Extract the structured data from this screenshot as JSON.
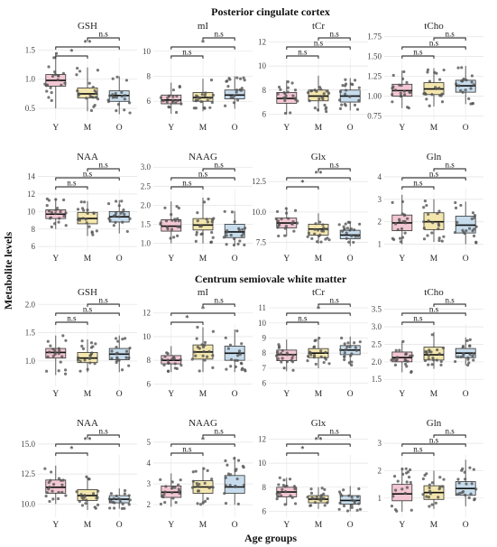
{
  "figure": {
    "ylabel": "Metabolite levels",
    "xlabel": "Age groups",
    "sections": [
      "Posterior cingulate cortex",
      "Centrum semiovale white matter"
    ]
  },
  "colors": {
    "Y": "#f2c6d3",
    "M": "#f3e6ad",
    "O": "#c6dcec",
    "grid": "#e6e6e6",
    "points": "#555555"
  },
  "chart_data": [
    {
      "type": "box",
      "section": "Posterior cingulate cortex",
      "title": "GSH",
      "categories": [
        "Y",
        "M",
        "O"
      ],
      "ylim": [
        0.3,
        1.8
      ],
      "yticks": [
        0.5,
        1.0,
        1.5
      ],
      "ytick_labels": [
        "0.5",
        "1.0",
        "1.5"
      ],
      "boxes": [
        {
          "group": "Y",
          "min": 0.5,
          "q1": 0.88,
          "median": 0.98,
          "q3": 1.08,
          "max": 1.45
        },
        {
          "group": "M",
          "min": 0.45,
          "q1": 0.68,
          "median": 0.75,
          "q3": 0.85,
          "max": 1.2
        },
        {
          "group": "O",
          "min": 0.4,
          "q1": 0.62,
          "median": 0.72,
          "q3": 0.8,
          "max": 1.05
        }
      ],
      "significance": [
        {
          "from": "Y",
          "to": "M",
          "label": "*"
        },
        {
          "from": "Y",
          "to": "O",
          "label": "**"
        },
        {
          "from": "M",
          "to": "O",
          "label": "n.s"
        }
      ]
    },
    {
      "type": "box",
      "section": "Posterior cingulate cortex",
      "title": "mI",
      "categories": [
        "Y",
        "M",
        "O"
      ],
      "ylim": [
        4.5,
        11.5
      ],
      "yticks": [
        6,
        8,
        10
      ],
      "ytick_labels": [
        "6",
        "8",
        "10"
      ],
      "boxes": [
        {
          "group": "Y",
          "min": 5.0,
          "q1": 5.8,
          "median": 6.1,
          "q3": 6.5,
          "max": 7.5
        },
        {
          "group": "M",
          "min": 5.2,
          "q1": 6.0,
          "median": 6.3,
          "q3": 6.7,
          "max": 7.8
        },
        {
          "group": "O",
          "min": 5.4,
          "q1": 6.2,
          "median": 6.5,
          "q3": 6.9,
          "max": 8.0
        }
      ],
      "significance": [
        {
          "from": "Y",
          "to": "M",
          "label": "n.s"
        },
        {
          "from": "Y",
          "to": "O",
          "label": "*"
        },
        {
          "from": "M",
          "to": "O",
          "label": "n.s"
        }
      ]
    },
    {
      "type": "box",
      "section": "Posterior cingulate cortex",
      "title": "tCr",
      "categories": [
        "Y",
        "M",
        "O"
      ],
      "ylim": [
        5.5,
        12.8
      ],
      "yticks": [
        6,
        8,
        10,
        12
      ],
      "ytick_labels": [
        "6",
        "8",
        "10",
        "12"
      ],
      "boxes": [
        {
          "group": "Y",
          "min": 6.0,
          "q1": 6.9,
          "median": 7.3,
          "q3": 7.8,
          "max": 8.8
        },
        {
          "group": "M",
          "min": 6.2,
          "q1": 7.1,
          "median": 7.5,
          "q3": 8.0,
          "max": 9.2
        },
        {
          "group": "O",
          "min": 6.3,
          "q1": 7.0,
          "median": 7.5,
          "q3": 8.0,
          "max": 9.0
        }
      ],
      "significance": [
        {
          "from": "Y",
          "to": "M",
          "label": "n.s"
        },
        {
          "from": "Y",
          "to": "O",
          "label": "n.s"
        },
        {
          "from": "M",
          "to": "O",
          "label": "n.s"
        }
      ]
    },
    {
      "type": "box",
      "section": "Posterior cingulate cortex",
      "title": "tCho",
      "categories": [
        "Y",
        "M",
        "O"
      ],
      "ylim": [
        0.7,
        1.8
      ],
      "yticks": [
        0.75,
        1.0,
        1.25,
        1.5,
        1.75
      ],
      "ytick_labels": [
        "0.75",
        "1.00",
        "1.25",
        "1.50",
        "1.75"
      ],
      "boxes": [
        {
          "group": "Y",
          "min": 0.85,
          "q1": 1.0,
          "median": 1.07,
          "q3": 1.15,
          "max": 1.32
        },
        {
          "group": "M",
          "min": 0.87,
          "q1": 1.02,
          "median": 1.09,
          "q3": 1.17,
          "max": 1.35
        },
        {
          "group": "O",
          "min": 0.9,
          "q1": 1.05,
          "median": 1.13,
          "q3": 1.2,
          "max": 1.38
        }
      ],
      "significance": [
        {
          "from": "Y",
          "to": "M",
          "label": "n.s"
        },
        {
          "from": "Y",
          "to": "O",
          "label": "n.s"
        },
        {
          "from": "M",
          "to": "O",
          "label": "n.s"
        }
      ]
    },
    {
      "type": "box",
      "section": "Posterior cingulate cortex",
      "title": "NAA",
      "categories": [
        "Y",
        "M",
        "O"
      ],
      "ylim": [
        5.5,
        15.5
      ],
      "yticks": [
        6,
        8,
        10,
        12,
        14
      ],
      "ytick_labels": [
        "6",
        "8",
        "10",
        "12",
        "14"
      ],
      "boxes": [
        {
          "group": "Y",
          "min": 8.0,
          "q1": 9.2,
          "median": 9.7,
          "q3": 10.2,
          "max": 11.5
        },
        {
          "group": "M",
          "min": 7.2,
          "q1": 8.6,
          "median": 9.2,
          "q3": 9.9,
          "max": 11.2
        },
        {
          "group": "O",
          "min": 7.5,
          "q1": 8.8,
          "median": 9.4,
          "q3": 10.0,
          "max": 11.3
        }
      ],
      "significance": [
        {
          "from": "Y",
          "to": "M",
          "label": "n.s"
        },
        {
          "from": "Y",
          "to": "O",
          "label": "n.s"
        },
        {
          "from": "M",
          "to": "O",
          "label": "n.s"
        }
      ]
    },
    {
      "type": "box",
      "section": "Posterior cingulate cortex",
      "title": "NAAG",
      "categories": [
        "Y",
        "M",
        "O"
      ],
      "ylim": [
        0.8,
        3.1
      ],
      "yticks": [
        1.0,
        1.5,
        2.0,
        2.5,
        3.0
      ],
      "ytick_labels": [
        "1.0",
        "1.5",
        "2.0",
        "2.5",
        "3.0"
      ],
      "boxes": [
        {
          "group": "Y",
          "min": 1.0,
          "q1": 1.32,
          "median": 1.45,
          "q3": 1.62,
          "max": 2.1
        },
        {
          "group": "M",
          "min": 1.0,
          "q1": 1.35,
          "median": 1.48,
          "q3": 1.65,
          "max": 2.2
        },
        {
          "group": "O",
          "min": 0.95,
          "q1": 1.15,
          "median": 1.3,
          "q3": 1.5,
          "max": 1.85
        }
      ],
      "significance": [
        {
          "from": "Y",
          "to": "M",
          "label": "n.s"
        },
        {
          "from": "Y",
          "to": "O",
          "label": "n.s"
        },
        {
          "from": "M",
          "to": "O",
          "label": "n.s"
        }
      ]
    },
    {
      "type": "box",
      "section": "Posterior cingulate cortex",
      "title": "Glx",
      "categories": [
        "Y",
        "M",
        "O"
      ],
      "ylim": [
        6.8,
        14.0
      ],
      "yticks": [
        7.5,
        10.0,
        12.5
      ],
      "ytick_labels": [
        "7.5",
        "10.0",
        "12.5"
      ],
      "boxes": [
        {
          "group": "Y",
          "min": 8.0,
          "q1": 8.7,
          "median": 9.1,
          "q3": 9.5,
          "max": 10.3
        },
        {
          "group": "M",
          "min": 7.4,
          "q1": 8.1,
          "median": 8.6,
          "q3": 9.0,
          "max": 9.9
        },
        {
          "group": "O",
          "min": 7.2,
          "q1": 7.8,
          "median": 8.1,
          "q3": 8.5,
          "max": 9.2
        }
      ],
      "significance": [
        {
          "from": "Y",
          "to": "M",
          "label": "*"
        },
        {
          "from": "Y",
          "to": "O",
          "label": "**"
        },
        {
          "from": "M",
          "to": "O",
          "label": "n.s"
        }
      ]
    },
    {
      "type": "box",
      "section": "Posterior cingulate cortex",
      "title": "Gln",
      "categories": [
        "Y",
        "M",
        "O"
      ],
      "ylim": [
        0.7,
        4.6
      ],
      "yticks": [
        1,
        2,
        3,
        4
      ],
      "ytick_labels": [
        "1",
        "2",
        "3",
        "4"
      ],
      "boxes": [
        {
          "group": "Y",
          "min": 1.0,
          "q1": 1.6,
          "median": 1.95,
          "q3": 2.3,
          "max": 3.2
        },
        {
          "group": "M",
          "min": 1.1,
          "q1": 1.65,
          "median": 2.0,
          "q3": 2.4,
          "max": 3.0
        },
        {
          "group": "O",
          "min": 1.0,
          "q1": 1.5,
          "median": 1.85,
          "q3": 2.25,
          "max": 2.9
        }
      ],
      "significance": [
        {
          "from": "Y",
          "to": "M",
          "label": "n.s"
        },
        {
          "from": "Y",
          "to": "O",
          "label": "n.s"
        },
        {
          "from": "M",
          "to": "O",
          "label": "n.s"
        }
      ]
    },
    {
      "type": "box",
      "section": "Centrum semiovale white matter",
      "title": "GSH",
      "categories": [
        "Y",
        "M",
        "O"
      ],
      "ylim": [
        0.55,
        2.1
      ],
      "yticks": [
        1.0,
        1.5,
        2.0
      ],
      "ytick_labels": [
        "1.0",
        "1.5",
        "2.0"
      ],
      "boxes": [
        {
          "group": "Y",
          "min": 0.75,
          "q1": 1.05,
          "median": 1.15,
          "q3": 1.22,
          "max": 1.45
        },
        {
          "group": "M",
          "min": 0.8,
          "q1": 0.97,
          "median": 1.05,
          "q3": 1.15,
          "max": 1.38
        },
        {
          "group": "O",
          "min": 0.8,
          "q1": 1.02,
          "median": 1.12,
          "q3": 1.22,
          "max": 1.45
        }
      ],
      "significance": [
        {
          "from": "Y",
          "to": "M",
          "label": "n.s"
        },
        {
          "from": "Y",
          "to": "O",
          "label": "n.s"
        },
        {
          "from": "M",
          "to": "O",
          "label": "n.s"
        }
      ]
    },
    {
      "type": "box",
      "section": "Centrum semiovale white matter",
      "title": "mI",
      "categories": [
        "Y",
        "M",
        "O"
      ],
      "ylim": [
        5.8,
        13.2
      ],
      "yticks": [
        6,
        8,
        10,
        12
      ],
      "ytick_labels": [
        "6",
        "8",
        "10",
        "12"
      ],
      "boxes": [
        {
          "group": "Y",
          "min": 7.0,
          "q1": 7.7,
          "median": 8.0,
          "q3": 8.4,
          "max": 9.2
        },
        {
          "group": "M",
          "min": 7.0,
          "q1": 8.1,
          "median": 8.7,
          "q3": 9.3,
          "max": 10.8
        },
        {
          "group": "O",
          "min": 7.0,
          "q1": 8.0,
          "median": 8.6,
          "q3": 9.2,
          "max": 10.6
        }
      ],
      "significance": [
        {
          "from": "Y",
          "to": "M",
          "label": "*"
        },
        {
          "from": "Y",
          "to": "O",
          "label": "*"
        },
        {
          "from": "M",
          "to": "O",
          "label": "n.s"
        }
      ]
    },
    {
      "type": "box",
      "section": "Centrum semiovale white matter",
      "title": "tCr",
      "categories": [
        "Y",
        "M",
        "O"
      ],
      "ylim": [
        5.8,
        11.6
      ],
      "yticks": [
        6,
        7,
        8,
        9,
        10,
        11
      ],
      "ytick_labels": [
        "6",
        "7",
        "8",
        "9",
        "10",
        "11"
      ],
      "boxes": [
        {
          "group": "Y",
          "min": 6.8,
          "q1": 7.5,
          "median": 7.9,
          "q3": 8.2,
          "max": 8.9
        },
        {
          "group": "M",
          "min": 7.0,
          "q1": 7.7,
          "median": 8.0,
          "q3": 8.3,
          "max": 9.0
        },
        {
          "group": "O",
          "min": 7.2,
          "q1": 7.9,
          "median": 8.2,
          "q3": 8.5,
          "max": 9.1
        }
      ],
      "significance": [
        {
          "from": "Y",
          "to": "M",
          "label": "n.s"
        },
        {
          "from": "Y",
          "to": "O",
          "label": "*"
        },
        {
          "from": "M",
          "to": "O",
          "label": "n.s"
        }
      ]
    },
    {
      "type": "box",
      "section": "Centrum semiovale white matter",
      "title": "tCho",
      "categories": [
        "Y",
        "M",
        "O"
      ],
      "ylim": [
        1.3,
        3.8
      ],
      "yticks": [
        1.5,
        2.0,
        2.5,
        3.0,
        3.5
      ],
      "ytick_labels": [
        "1.5",
        "2.0",
        "2.5",
        "3.0",
        "3.5"
      ],
      "boxes": [
        {
          "group": "Y",
          "min": 1.7,
          "q1": 2.0,
          "median": 2.12,
          "q3": 2.28,
          "max": 2.6
        },
        {
          "group": "M",
          "min": 1.8,
          "q1": 2.05,
          "median": 2.2,
          "q3": 2.42,
          "max": 2.85
        },
        {
          "group": "O",
          "min": 1.9,
          "q1": 2.12,
          "median": 2.25,
          "q3": 2.38,
          "max": 2.7
        }
      ],
      "significance": [
        {
          "from": "Y",
          "to": "M",
          "label": "n.s"
        },
        {
          "from": "Y",
          "to": "O",
          "label": "n.s"
        },
        {
          "from": "M",
          "to": "O",
          "label": "n.s"
        }
      ]
    },
    {
      "type": "box",
      "section": "Centrum semiovale white matter",
      "title": "NAA",
      "categories": [
        "Y",
        "M",
        "O"
      ],
      "ylim": [
        8.9,
        16.2
      ],
      "yticks": [
        10.0,
        12.5,
        15.0
      ],
      "ytick_labels": [
        "10.0",
        "12.5",
        "15.0"
      ],
      "boxes": [
        {
          "group": "Y",
          "min": 10.0,
          "q1": 10.9,
          "median": 11.4,
          "q3": 12.0,
          "max": 13.2
        },
        {
          "group": "M",
          "min": 9.5,
          "q1": 10.3,
          "median": 10.7,
          "q3": 11.2,
          "max": 12.3
        },
        {
          "group": "O",
          "min": 9.6,
          "q1": 10.1,
          "median": 10.4,
          "q3": 10.7,
          "max": 11.3
        }
      ],
      "significance": [
        {
          "from": "Y",
          "to": "M",
          "label": "*"
        },
        {
          "from": "Y",
          "to": "O",
          "label": "**"
        },
        {
          "from": "M",
          "to": "O",
          "label": "n.s"
        }
      ]
    },
    {
      "type": "box",
      "section": "Centrum semiovale white matter",
      "title": "NAAG",
      "categories": [
        "Y",
        "M",
        "O"
      ],
      "ylim": [
        1.4,
        5.6
      ],
      "yticks": [
        2,
        3,
        4,
        5
      ],
      "ytick_labels": [
        "2",
        "3",
        "4",
        "5"
      ],
      "boxes": [
        {
          "group": "Y",
          "min": 1.9,
          "q1": 2.35,
          "median": 2.6,
          "q3": 2.9,
          "max": 3.5
        },
        {
          "group": "M",
          "min": 2.0,
          "q1": 2.55,
          "median": 2.85,
          "q3": 3.15,
          "max": 3.8
        },
        {
          "group": "O",
          "min": 2.0,
          "q1": 2.55,
          "median": 2.85,
          "q3": 3.4,
          "max": 4.3
        }
      ],
      "significance": [
        {
          "from": "Y",
          "to": "M",
          "label": "n.s"
        },
        {
          "from": "Y",
          "to": "O",
          "label": "*"
        },
        {
          "from": "M",
          "to": "O",
          "label": "n.s"
        }
      ]
    },
    {
      "type": "box",
      "section": "Centrum semiovale white matter",
      "title": "Glx",
      "categories": [
        "Y",
        "M",
        "O"
      ],
      "ylim": [
        5.5,
        12.8
      ],
      "yticks": [
        6,
        8,
        10,
        12
      ],
      "ytick_labels": [
        "6",
        "8",
        "10",
        "12"
      ],
      "boxes": [
        {
          "group": "Y",
          "min": 6.5,
          "q1": 7.2,
          "median": 7.6,
          "q3": 8.0,
          "max": 8.8
        },
        {
          "group": "M",
          "min": 6.2,
          "q1": 6.7,
          "median": 7.0,
          "q3": 7.3,
          "max": 8.0
        },
        {
          "group": "O",
          "min": 6.0,
          "q1": 6.6,
          "median": 6.9,
          "q3": 7.3,
          "max": 8.1
        }
      ],
      "significance": [
        {
          "from": "Y",
          "to": "M",
          "label": "*"
        },
        {
          "from": "Y",
          "to": "O",
          "label": "**"
        },
        {
          "from": "M",
          "to": "O",
          "label": "n.s"
        }
      ]
    },
    {
      "type": "box",
      "section": "Centrum semiovale white matter",
      "title": "Gln",
      "categories": [
        "Y",
        "M",
        "O"
      ],
      "ylim": [
        0.3,
        3.5
      ],
      "yticks": [
        1,
        2,
        3
      ],
      "ytick_labels": [
        "1",
        "2",
        "3"
      ],
      "boxes": [
        {
          "group": "Y",
          "min": 0.5,
          "q1": 0.9,
          "median": 1.15,
          "q3": 1.5,
          "max": 2.1
        },
        {
          "group": "M",
          "min": 0.6,
          "q1": 0.95,
          "median": 1.2,
          "q3": 1.45,
          "max": 2.0
        },
        {
          "group": "O",
          "min": 0.7,
          "q1": 1.1,
          "median": 1.35,
          "q3": 1.6,
          "max": 2.4
        }
      ],
      "significance": [
        {
          "from": "Y",
          "to": "M",
          "label": "n.s"
        },
        {
          "from": "Y",
          "to": "O",
          "label": "n.s"
        },
        {
          "from": "M",
          "to": "O",
          "label": "n.s"
        }
      ]
    }
  ]
}
